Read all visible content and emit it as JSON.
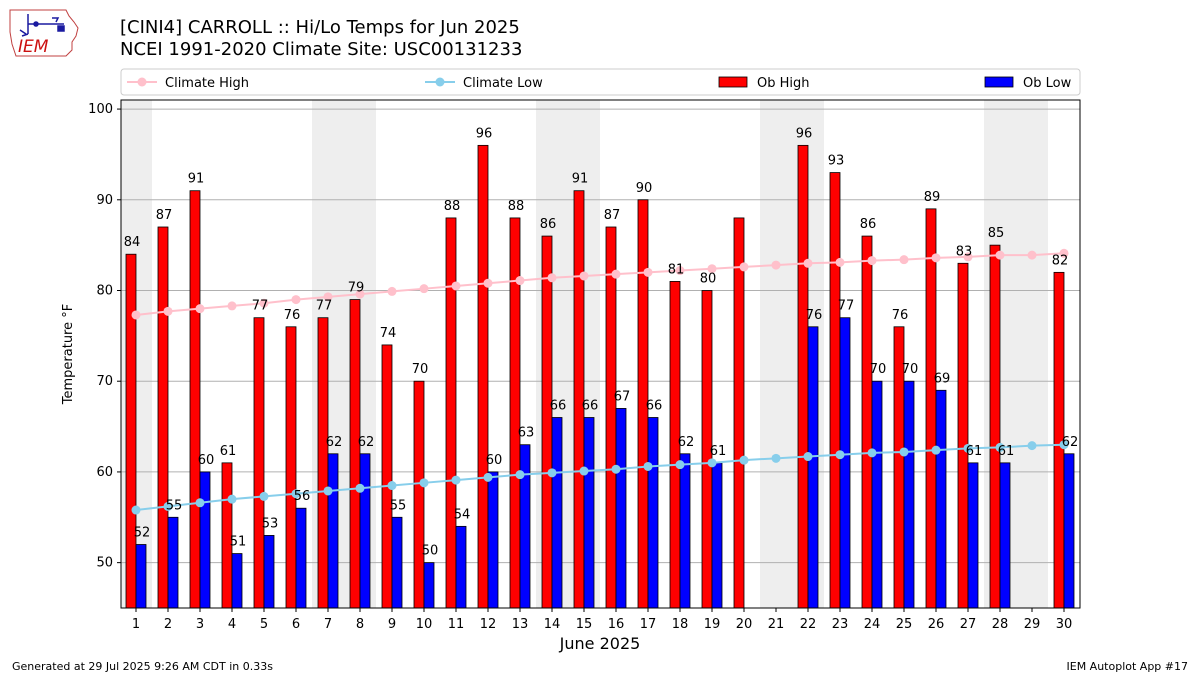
{
  "title_line1": "[CINI4] CARROLL :: Hi/Lo Temps for Jun 2025",
  "title_line2": "NCEI 1991-2020 Climate Site: USC00131233",
  "logo_text": "IEM",
  "footer_left": "Generated at 29 Jul 2025 9:26 AM CDT in 0.33s",
  "footer_right": "IEM Autoplot App #17",
  "colors": {
    "ob_high": "#ff0000",
    "ob_low": "#0000ff",
    "climate_high": "#ffc0cb",
    "climate_low": "#87ceeb",
    "weekend_band": "#eeeeee",
    "grid": "#b0b0b0"
  },
  "chart_data": {
    "type": "bar",
    "xlabel": "June 2025",
    "ylabel": "Temperature °F",
    "ylim": [
      45,
      101
    ],
    "yticks": [
      50,
      60,
      70,
      80,
      90,
      100
    ],
    "grid": "horizontal",
    "legend_position": "top",
    "categories": [
      "1",
      "2",
      "3",
      "4",
      "5",
      "6",
      "7",
      "8",
      "9",
      "10",
      "11",
      "12",
      "13",
      "14",
      "15",
      "16",
      "17",
      "18",
      "19",
      "20",
      "21",
      "22",
      "23",
      "24",
      "25",
      "26",
      "27",
      "28",
      "29",
      "30"
    ],
    "weekend_days": [
      1,
      7,
      8,
      14,
      15,
      21,
      22,
      28,
      29
    ],
    "series": [
      {
        "name": "Climate High",
        "kind": "line",
        "values": [
          77.3,
          77.7,
          78.0,
          78.3,
          78.6,
          79.0,
          79.3,
          79.6,
          79.9,
          80.2,
          80.5,
          80.8,
          81.1,
          81.4,
          81.6,
          81.8,
          82.0,
          82.2,
          82.4,
          82.6,
          82.8,
          83.0,
          83.1,
          83.3,
          83.4,
          83.6,
          83.7,
          83.9,
          83.9,
          84.1
        ]
      },
      {
        "name": "Climate Low",
        "kind": "line",
        "values": [
          55.8,
          56.2,
          56.6,
          57.0,
          57.3,
          57.6,
          57.9,
          58.2,
          58.5,
          58.8,
          59.1,
          59.4,
          59.7,
          59.9,
          60.1,
          60.3,
          60.6,
          60.8,
          61.0,
          61.3,
          61.5,
          61.7,
          61.9,
          62.1,
          62.2,
          62.4,
          62.6,
          62.7,
          62.9,
          63.0
        ]
      },
      {
        "name": "Ob High",
        "kind": "bar",
        "values": [
          84,
          87,
          91,
          61,
          77,
          76,
          77,
          79,
          74,
          70,
          88,
          96,
          88,
          86,
          91,
          87,
          90,
          81,
          80,
          88,
          null,
          96,
          93,
          86,
          76,
          89,
          83,
          85,
          null,
          82
        ],
        "labels": [
          "84",
          "87",
          "91",
          "61",
          "77",
          "76",
          "77",
          "79",
          "74",
          "70",
          "88",
          "96",
          "88",
          "86",
          "91",
          "87",
          "90",
          "81",
          "80",
          "",
          "",
          "96",
          "93",
          "86",
          "76",
          "89",
          "83",
          "85",
          "",
          "82"
        ]
      },
      {
        "name": "Ob Low",
        "kind": "bar",
        "values": [
          52,
          55,
          60,
          51,
          53,
          56,
          62,
          62,
          55,
          50,
          54,
          60,
          63,
          66,
          66,
          67,
          66,
          62,
          61,
          null,
          null,
          76,
          77,
          70,
          70,
          69,
          61,
          61,
          null,
          62
        ],
        "labels": [
          "52",
          "55",
          "60",
          "51",
          "53",
          "56",
          "62",
          "62",
          "55",
          "50",
          "54",
          "60",
          "63",
          "66",
          "66",
          "67",
          "66",
          "62",
          "61",
          "",
          "",
          "76",
          "77",
          "70",
          "70",
          "69",
          "61",
          "61",
          "",
          "62"
        ]
      }
    ]
  }
}
